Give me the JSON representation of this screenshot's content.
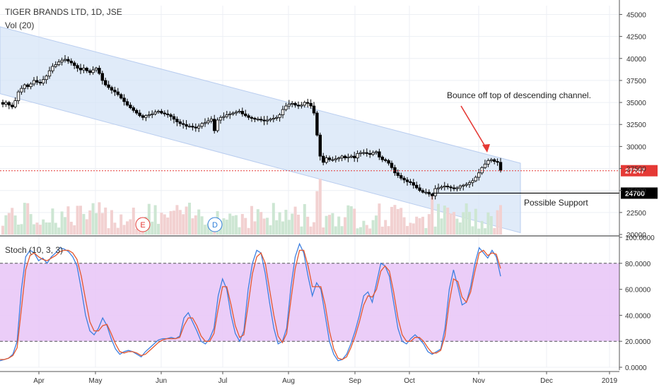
{
  "header": {
    "symbol_line": "TIGER BRANDS LTD, 1D, JSE",
    "volume_label": "Vol (20)",
    "stoch_label": "Stoch (10, 3, 3)"
  },
  "colors": {
    "up_candle": "#ffffff",
    "down_candle": "#000000",
    "candle_border": "#000000",
    "channel_fill": "#d6e4f7",
    "volume_up": "#cde6d3",
    "volume_down": "#f2d1d1",
    "stoch_band": "#e9c8f7",
    "stoch_k": "#3d7fe0",
    "stoch_d": "#e4572e",
    "annotation_arrow": "#e53935",
    "last_price_line": "#e53935",
    "last_price_tag": "#e53935",
    "support_tag": "#000000",
    "grid": "#eceff4"
  },
  "annotations": {
    "bounce_text": "Bounce off top of descending channel.",
    "support_text": "Possible Support"
  },
  "events": {
    "earnings_marker": "E",
    "dividend_marker": "D"
  },
  "chart_data": [
    {
      "type": "candlestick",
      "title": "TIGER BRANDS LTD, 1D, JSE",
      "x_ticks": [
        "Apr",
        "May",
        "Jun",
        "Jul",
        "Aug",
        "Sep",
        "Oct",
        "Nov",
        "Dec",
        "2019"
      ],
      "y_ticks": [
        "45000",
        "42500",
        "40000",
        "37500",
        "35000",
        "32500",
        "30000",
        "27500",
        "25000",
        "22500",
        "20000"
      ],
      "ylim": [
        20000,
        46000
      ],
      "last_price": "27247",
      "support_level": "24700",
      "closes": [
        34800,
        35000,
        34700,
        34500,
        35200,
        36200,
        36600,
        37000,
        36800,
        37100,
        37500,
        37300,
        37200,
        37600,
        38000,
        38600,
        39100,
        39300,
        39600,
        39800,
        39900,
        39700,
        39500,
        39200,
        38900,
        38700,
        38900,
        38600,
        38400,
        38700,
        38900,
        38300,
        37500,
        37000,
        36700,
        36400,
        36200,
        35900,
        35500,
        35100,
        34700,
        34400,
        34100,
        33800,
        33500,
        33300,
        33500,
        33600,
        33700,
        33900,
        34000,
        33800,
        33700,
        33600,
        33400,
        33100,
        32800,
        32600,
        32500,
        32300,
        32300,
        32200,
        32100,
        32300,
        32600,
        32700,
        32900,
        33100,
        31800,
        33000,
        33300,
        33400,
        33600,
        33700,
        33800,
        33900,
        34000,
        33700,
        33500,
        33300,
        33200,
        33100,
        33100,
        33000,
        32900,
        33000,
        33100,
        33200,
        33300,
        33600,
        34200,
        34600,
        34800,
        34900,
        34700,
        34600,
        34700,
        35000,
        34900,
        34600,
        33800,
        31300,
        28900,
        28200,
        28700,
        28500,
        28500,
        28600,
        28700,
        28900,
        28700,
        28800,
        28900,
        28700,
        29200,
        29300,
        29300,
        29200,
        29100,
        29300,
        29400,
        28800,
        28500,
        28400,
        28100,
        27600,
        27000,
        26700,
        26400,
        26200,
        26000,
        25900,
        25600,
        25300,
        25000,
        24800,
        24800,
        24600,
        24400,
        25200,
        25300,
        25400,
        25500,
        25400,
        25300,
        25200,
        25300,
        25500,
        25600,
        25700,
        25900,
        26100,
        26500,
        27000,
        27600,
        28000,
        28400,
        28500,
        28300,
        28200,
        27300
      ],
      "volume_max_share": 1.0
    },
    {
      "type": "line",
      "title": "Stoch (10, 3, 3)",
      "y_ticks": [
        "100.0000",
        "80.0000",
        "60.0000",
        "40.0000",
        "20.0000",
        "0.0000"
      ],
      "ylim": [
        0,
        100
      ],
      "bands": [
        20,
        80
      ],
      "series": [
        {
          "name": "K",
          "values": [
            5,
            6,
            7,
            10,
            20,
            60,
            85,
            90,
            88,
            82,
            84,
            80,
            85,
            88,
            92,
            91,
            89,
            85,
            78,
            60,
            40,
            28,
            25,
            30,
            38,
            32,
            22,
            14,
            10,
            12,
            13,
            12,
            10,
            8,
            12,
            15,
            18,
            21,
            22,
            22,
            23,
            22,
            24,
            38,
            42,
            35,
            28,
            20,
            18,
            22,
            30,
            55,
            68,
            60,
            40,
            26,
            20,
            28,
            60,
            80,
            90,
            88,
            72,
            50,
            30,
            18,
            20,
            30,
            62,
            85,
            95,
            88,
            70,
            55,
            65,
            60,
            40,
            20,
            10,
            5,
            6,
            10,
            18,
            28,
            40,
            55,
            58,
            50,
            65,
            80,
            78,
            70,
            50,
            30,
            20,
            18,
            22,
            25,
            22,
            18,
            12,
            10,
            12,
            14,
            30,
            60,
            75,
            62,
            48,
            50,
            62,
            80,
            92,
            88,
            84,
            90,
            85,
            70
          ]
        },
        {
          "name": "D",
          "values": [
            6,
            6,
            7,
            9,
            15,
            45,
            75,
            86,
            88,
            85,
            83,
            82,
            84,
            86,
            89,
            90,
            90,
            88,
            83,
            70,
            52,
            35,
            28,
            28,
            32,
            33,
            26,
            18,
            12,
            11,
            12,
            12,
            11,
            9,
            10,
            13,
            16,
            19,
            21,
            22,
            22,
            22,
            23,
            32,
            38,
            38,
            32,
            24,
            20,
            20,
            26,
            45,
            62,
            62,
            48,
            32,
            23,
            25,
            48,
            72,
            85,
            88,
            80,
            60,
            40,
            24,
            19,
            26,
            52,
            76,
            90,
            90,
            78,
            62,
            62,
            62,
            48,
            28,
            14,
            7,
            6,
            8,
            15,
            24,
            35,
            48,
            55,
            54,
            60,
            74,
            78,
            74,
            58,
            38,
            25,
            20,
            20,
            23,
            23,
            20,
            15,
            11,
            11,
            13,
            24,
            50,
            68,
            66,
            54,
            50,
            58,
            74,
            88,
            90,
            86,
            88,
            87,
            76
          ]
        }
      ]
    }
  ]
}
